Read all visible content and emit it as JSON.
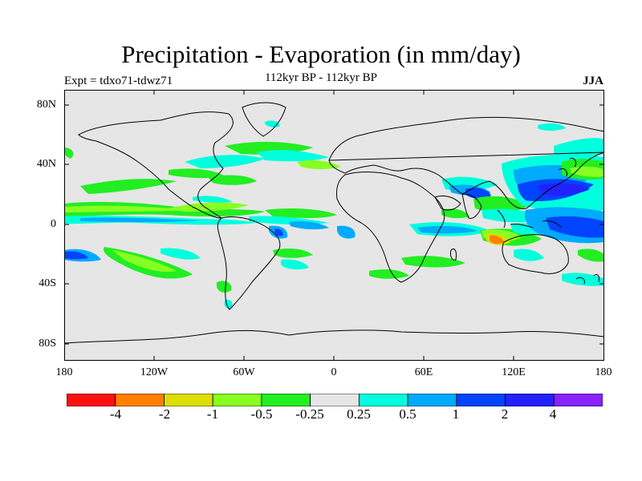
{
  "title": "Precipitation - Evaporation (in mm/day)",
  "left_label": "Expt = tdxo71-tdwz71",
  "center_label": "112kyr BP - 112kyr BP",
  "right_label": "JJA",
  "colors": {
    "land_ocean_neutral": "#e6e6e6",
    "coastline": "#000000"
  },
  "lat_ticks": [
    "80N",
    "40N",
    "0",
    "40S",
    "80S"
  ],
  "lon_ticks": [
    "180",
    "120W",
    "60W",
    "0",
    "60E",
    "120E",
    "180"
  ],
  "colorbar": {
    "colors": [
      "#ff1010",
      "#ff8000",
      "#dddd00",
      "#88ff22",
      "#22ee22",
      "#e6e6e6",
      "#00ffdd",
      "#00aaff",
      "#0044ff",
      "#2222ff",
      "#8822ff"
    ],
    "labels": [
      "-4",
      "-2",
      "-1",
      "-0.5",
      "-0.25",
      "0.25",
      "0.5",
      "1",
      "2",
      "4"
    ]
  }
}
